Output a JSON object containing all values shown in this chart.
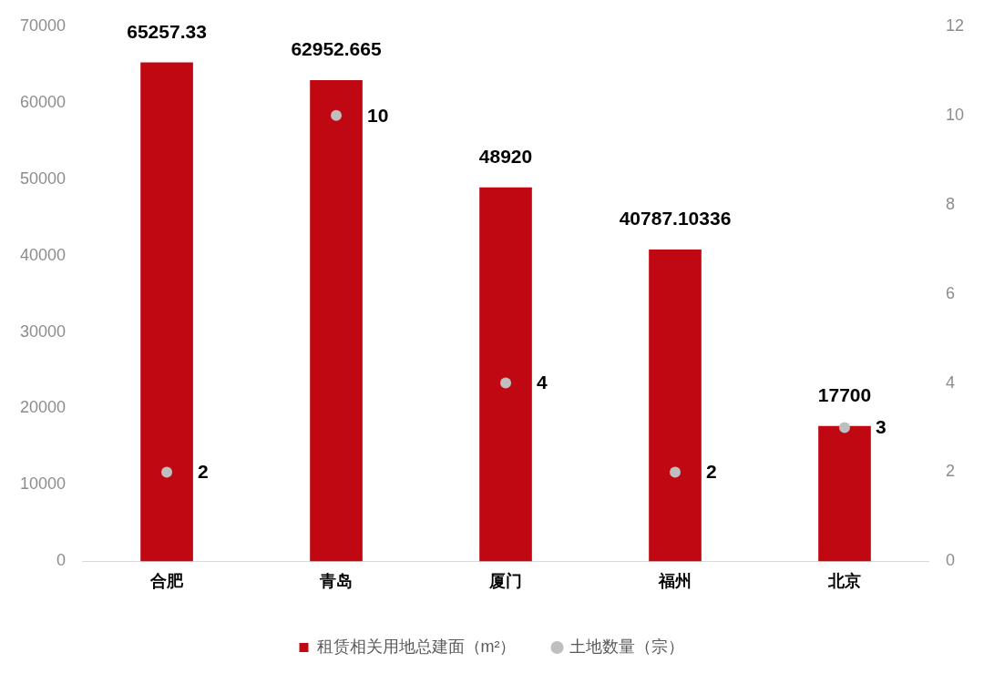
{
  "chart_data": {
    "type": "bar",
    "categories": [
      "合肥",
      "青岛",
      "厦门",
      "福州",
      "北京"
    ],
    "series": [
      {
        "name": "租赁相关用地总建面（m²）",
        "type": "bar",
        "color": "#c00812",
        "values": [
          65257.33,
          62952.665,
          48920,
          40787.10336,
          17700
        ]
      },
      {
        "name": "土地数量（宗）",
        "type": "scatter",
        "axis": "y2",
        "color": "#bfbfbf",
        "values": [
          2,
          10,
          4,
          2,
          3
        ]
      }
    ],
    "ylim": [
      0,
      70000
    ],
    "yticks": [
      0,
      10000,
      20000,
      30000,
      40000,
      50000,
      60000,
      70000
    ],
    "y2lim": [
      0,
      12
    ],
    "y2ticks": [
      0,
      2,
      4,
      6,
      8,
      10,
      12
    ],
    "grid": false,
    "legend": "bottom",
    "data_labels": true,
    "marker": "circle"
  }
}
